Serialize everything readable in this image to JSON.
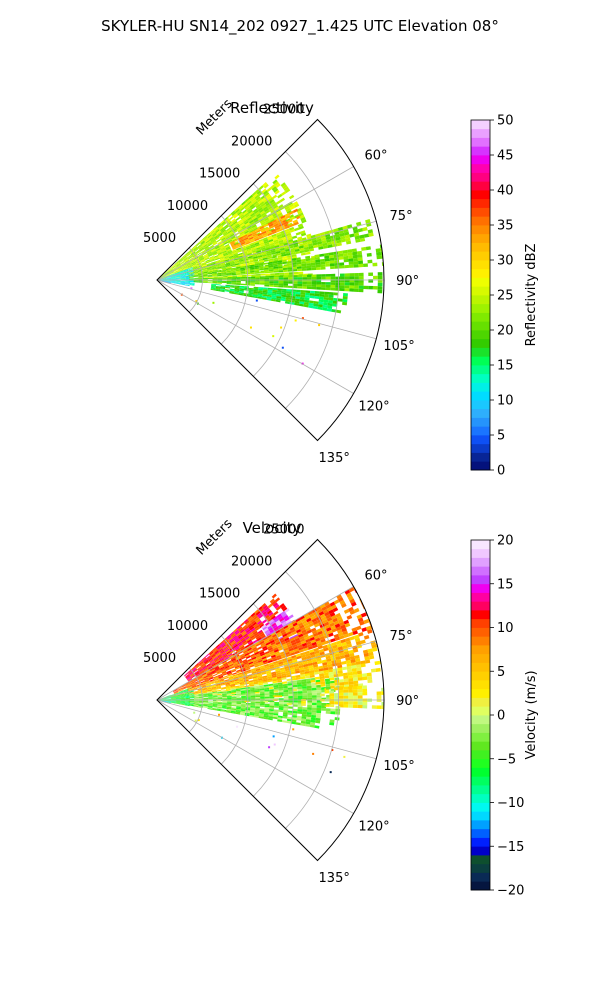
{
  "figure": {
    "suptitle": "SKYLER-HU  SN14_202  0927_1.425 UTC Elevation 08°"
  },
  "chart_data": [
    {
      "type": "heatmap",
      "subtype": "polar-sector-radar",
      "title": "Reflectivity",
      "radial_axis_label": "Meters",
      "radial_range": [
        0,
        25000
      ],
      "radial_ticks": [
        5000,
        10000,
        15000,
        20000,
        25000
      ],
      "radial_tick_labels": [
        "5000",
        "10000",
        "15000",
        "20000",
        "25000"
      ],
      "angle_range_deg": [
        45,
        135
      ],
      "angle_ticks_deg": [
        60,
        75,
        90,
        105,
        120,
        135
      ],
      "angle_tick_labels": [
        "60°",
        "75°",
        "90°",
        "105°",
        "120°",
        "135°"
      ],
      "grid": true,
      "colorbar": {
        "label": "Reflectivity dBZ",
        "range": [
          0,
          50
        ],
        "ticks": [
          0,
          5,
          10,
          15,
          20,
          25,
          30,
          35,
          40,
          45,
          50
        ],
        "tick_labels": [
          "0",
          "5",
          "10",
          "15",
          "20",
          "25",
          "30",
          "35",
          "40",
          "45",
          "50"
        ],
        "levels": 40,
        "colors": [
          "#04127c",
          "#082596",
          "#0b3bc9",
          "#0e50f5",
          "#1a75ff",
          "#2594fc",
          "#2eaffc",
          "#1ac8ff",
          "#00dcff",
          "#00f0e6",
          "#00ffc0",
          "#00ff8a",
          "#00ff55",
          "#1ae22a",
          "#33cc00",
          "#4dd600",
          "#66e000",
          "#80ea00",
          "#9ef200",
          "#bbf500",
          "#d7fa00",
          "#eeff00",
          "#fff000",
          "#ffe000",
          "#ffce00",
          "#ffbb00",
          "#ffa500",
          "#ff8c00",
          "#ff7000",
          "#ff4d00",
          "#ff2800",
          "#ff0000",
          "#ff0040",
          "#ff0080",
          "#ff00b0",
          "#ee00ee",
          "#d633ff",
          "#e170ff",
          "#eaa0ff",
          "#f4d0ff"
        ]
      },
      "echo_regions": [
        {
          "az": [
            48,
            88
          ],
          "r": [
            0,
            17500
          ],
          "value": 24
        },
        {
          "az": [
            63,
            68
          ],
          "r": [
            9000,
            17000
          ],
          "value": 33
        },
        {
          "az": [
            74,
            79
          ],
          "r": [
            2000,
            24000
          ],
          "value": 22
        },
        {
          "az": [
            81,
            86
          ],
          "r": [
            3000,
            25000
          ],
          "value": 21
        },
        {
          "az": [
            88,
            93
          ],
          "r": [
            3000,
            25000
          ],
          "value": 20
        },
        {
          "az": [
            94,
            100
          ],
          "r": [
            6000,
            21000
          ],
          "value": 17
        },
        {
          "az": [
            70,
            100
          ],
          "r": [
            0,
            4000
          ],
          "value": 12
        },
        {
          "az": [
            97,
            104
          ],
          "r": [
            0,
            1200
          ],
          "value": 9
        }
      ]
    },
    {
      "type": "heatmap",
      "subtype": "polar-sector-radar",
      "title": "Velocity",
      "radial_axis_label": "Meters",
      "radial_range": [
        0,
        25000
      ],
      "radial_ticks": [
        5000,
        10000,
        15000,
        20000,
        25000
      ],
      "radial_tick_labels": [
        "5000",
        "10000",
        "15000",
        "20000",
        "25000"
      ],
      "angle_range_deg": [
        45,
        135
      ],
      "angle_ticks_deg": [
        60,
        75,
        90,
        105,
        120,
        135
      ],
      "angle_tick_labels": [
        "60°",
        "75°",
        "90°",
        "105°",
        "120°",
        "135°"
      ],
      "grid": true,
      "colorbar": {
        "label": "Velocity (m/s)",
        "range": [
          -20,
          20
        ],
        "ticks": [
          -20,
          -15,
          -10,
          -5,
          0,
          5,
          10,
          15,
          20
        ],
        "tick_labels": [
          "−20",
          "−15",
          "−10",
          "−5",
          "0",
          "5",
          "10",
          "15",
          "20"
        ],
        "levels": 40,
        "colors": [
          "#05163f",
          "#0a2a55",
          "#0b3f3f",
          "#0e4f2e",
          "#0000c8",
          "#0020ff",
          "#0060ff",
          "#00a0ff",
          "#00d8ff",
          "#00f8f0",
          "#00ffc0",
          "#00ff90",
          "#00ff60",
          "#00ff30",
          "#20ff20",
          "#40f020",
          "#60e820",
          "#80f040",
          "#a0f060",
          "#c0f880",
          "#e0ff60",
          "#f0f040",
          "#fff000",
          "#ffe000",
          "#ffd000",
          "#ffc000",
          "#ffb000",
          "#ffa000",
          "#ff8000",
          "#ff6000",
          "#ff4000",
          "#ff0000",
          "#ff0060",
          "#ff00a0",
          "#f000f0",
          "#c040ff",
          "#d070ff",
          "#e0a0ff",
          "#f0c8ff",
          "#f8e6ff"
        ]
      },
      "echo_regions": [
        {
          "az": [
            48,
            60
          ],
          "r": [
            4000,
            17500
          ],
          "value": 11
        },
        {
          "az": [
            55,
            65
          ],
          "r": [
            14000,
            17500
          ],
          "value": 16
        },
        {
          "az": [
            60,
            72
          ],
          "r": [
            2000,
            25000
          ],
          "value": 9
        },
        {
          "az": [
            72,
            80
          ],
          "r": [
            2000,
            25000
          ],
          "value": 6
        },
        {
          "az": [
            80,
            86
          ],
          "r": [
            3000,
            25000
          ],
          "value": 3
        },
        {
          "az": [
            86,
            92
          ],
          "r": [
            6000,
            25000
          ],
          "value": 2
        },
        {
          "az": [
            82,
            100
          ],
          "r": [
            2000,
            20000
          ],
          "value": -3
        },
        {
          "az": [
            70,
            100
          ],
          "r": [
            0,
            4000
          ],
          "value": -6
        },
        {
          "az": [
            97,
            104
          ],
          "r": [
            0,
            1200
          ],
          "value": -10
        }
      ]
    }
  ]
}
